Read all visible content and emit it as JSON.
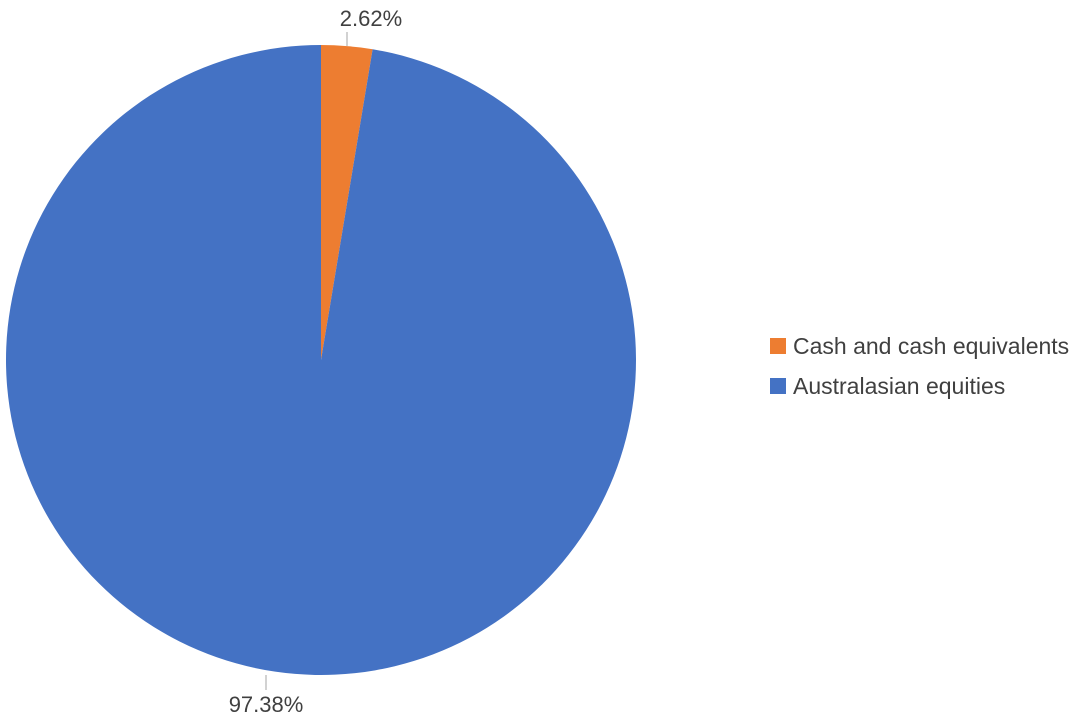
{
  "chart_data": {
    "type": "pie",
    "start_angle": 0,
    "direction": "clockwise",
    "slices": [
      {
        "name": "Cash and cash equivalents",
        "value": 2.62,
        "label": "2.62%",
        "color": "#ED7D31"
      },
      {
        "name": "Australasian equities",
        "value": 97.38,
        "label": "97.38%",
        "color": "#4472C4"
      }
    ],
    "legend_position": "right"
  }
}
